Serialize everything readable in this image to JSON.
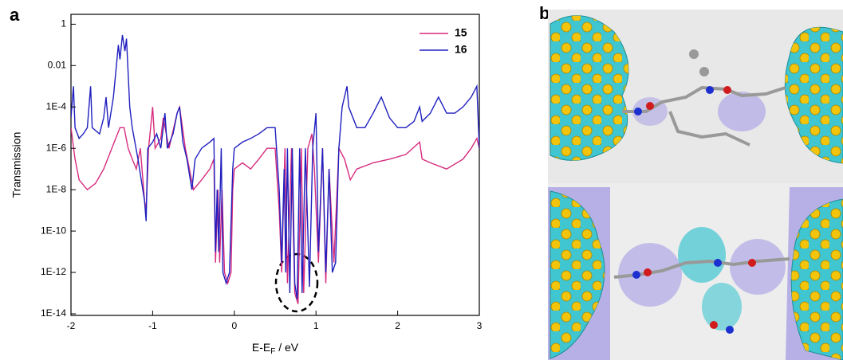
{
  "panel_labels": [
    "a",
    "b"
  ],
  "chart_data": {
    "type": "line",
    "ylabel": "Transmission",
    "xlabel": [
      "E-E",
      "F",
      " / eV"
    ],
    "xlim": [
      -2,
      3
    ],
    "xticks": [
      -2,
      -1,
      0,
      1,
      2,
      3
    ],
    "ylim": [
      1e-14,
      3
    ],
    "log_y": true,
    "yticks": [
      1,
      0.01,
      {
        "value": 0.0001,
        "label": "1E-4"
      },
      {
        "value": 1e-06,
        "label": "1E-6"
      },
      {
        "value": 1e-08,
        "label": "1E-8"
      },
      {
        "value": 1e-10,
        "label": "1E-10"
      },
      {
        "value": 1e-12,
        "label": "1E-12"
      },
      {
        "value": 1e-14,
        "label": "1E-14"
      }
    ],
    "legend": "upper right",
    "series": [
      {
        "name": "15",
        "color": "#d62a7e",
        "x": [
          -2.0,
          -1.95,
          -1.9,
          -1.8,
          -1.7,
          -1.6,
          -1.5,
          -1.4,
          -1.35,
          -1.3,
          -1.25,
          -1.2,
          -1.15,
          -1.1,
          -1.08,
          -1.05,
          -1.0,
          -0.97,
          -0.9,
          -0.87,
          -0.8,
          -0.7,
          -0.67,
          -0.6,
          -0.5,
          -0.4,
          -0.3,
          -0.25,
          -0.23,
          -0.2,
          -0.18,
          -0.15,
          -0.12,
          -0.08,
          -0.04,
          -0.02,
          0.0,
          0.1,
          0.2,
          0.3,
          0.4,
          0.5,
          0.55,
          0.58,
          0.62,
          0.65,
          0.7,
          0.74,
          0.78,
          0.82,
          0.85,
          0.9,
          0.95,
          0.98,
          1.03,
          1.08,
          1.12,
          1.16,
          1.22,
          1.28,
          1.35,
          1.42,
          1.5,
          1.7,
          1.9,
          2.1,
          2.27,
          2.3,
          2.4,
          2.6,
          2.8,
          2.9,
          2.97,
          3.0
        ],
        "values": [
          1e-05,
          3e-07,
          3e-08,
          1e-08,
          2e-08,
          1e-07,
          1e-06,
          1e-05,
          1e-05,
          1e-06,
          3e-07,
          1e-07,
          1e-06,
          3e-09,
          1e-09,
          1e-06,
          0.0001,
          1e-06,
          3e-06,
          3e-05,
          1e-06,
          5e-05,
          0.0001,
          1e-06,
          1e-08,
          3e-08,
          1e-07,
          3e-07,
          3e-12,
          1e-08,
          3e-12,
          1e-08,
          1e-12,
          3e-13,
          1e-12,
          1e-08,
          1e-07,
          2e-07,
          1e-07,
          3e-07,
          1e-06,
          1e-06,
          1e-09,
          1e-12,
          1e-06,
          3e-13,
          1e-06,
          1e-13,
          3e-14,
          1e-06,
          1e-13,
          1e-06,
          5e-06,
          1e-07,
          3e-12,
          1e-06,
          3e-13,
          1e-07,
          3e-12,
          1e-06,
          3e-07,
          3e-08,
          1e-07,
          2e-07,
          3e-07,
          5e-07,
          2e-06,
          3e-07,
          2e-07,
          1e-07,
          3e-07,
          1e-06,
          3e-06,
          1e-06
        ]
      },
      {
        "name": "16",
        "color": "#1f1fbf",
        "x": [
          -2.0,
          -1.97,
          -1.95,
          -1.9,
          -1.85,
          -1.8,
          -1.76,
          -1.74,
          -1.65,
          -1.6,
          -1.57,
          -1.54,
          -1.48,
          -1.42,
          -1.4,
          -1.37,
          -1.34,
          -1.32,
          -1.28,
          -1.25,
          -1.18,
          -1.1,
          -1.08,
          -1.06,
          -1.0,
          -0.95,
          -0.9,
          -0.85,
          -0.82,
          -0.75,
          -0.7,
          -0.67,
          -0.63,
          -0.58,
          -0.52,
          -0.48,
          -0.4,
          -0.3,
          -0.25,
          -0.23,
          -0.21,
          -0.19,
          -0.16,
          -0.14,
          -0.1,
          -0.06,
          -0.02,
          0.0,
          0.1,
          0.2,
          0.3,
          0.4,
          0.5,
          0.55,
          0.58,
          0.61,
          0.63,
          0.65,
          0.68,
          0.71,
          0.74,
          0.77,
          0.8,
          0.83,
          0.87,
          0.92,
          0.96,
          1.0,
          1.03,
          1.08,
          1.12,
          1.16,
          1.2,
          1.24,
          1.28,
          1.32,
          1.38,
          1.4,
          1.5,
          1.6,
          1.7,
          1.8,
          1.9,
          2.0,
          2.1,
          2.2,
          2.27,
          2.3,
          2.4,
          2.5,
          2.6,
          2.7,
          2.8,
          2.9,
          2.97,
          3.0
        ],
        "values": [
          3e-05,
          0.001,
          1e-05,
          3e-06,
          5e-06,
          1e-05,
          0.001,
          1e-05,
          5e-06,
          3e-05,
          0.0003,
          1e-05,
          0.0003,
          0.1,
          0.02,
          0.3,
          0.05,
          0.2,
          0.0001,
          1e-05,
          3e-07,
          3e-09,
          3e-10,
          1e-06,
          2e-06,
          5e-06,
          1e-06,
          5e-05,
          1e-06,
          5e-06,
          5e-05,
          0.0001,
          2e-06,
          3e-07,
          1e-08,
          3e-07,
          1e-06,
          2e-06,
          3e-06,
          1e-11,
          1e-08,
          1e-11,
          1e-06,
          1e-12,
          3e-13,
          1e-12,
          1e-07,
          1e-06,
          2e-06,
          3e-06,
          5e-06,
          1e-05,
          1e-05,
          1e-08,
          3e-12,
          1e-07,
          1e-12,
          1e-06,
          1e-13,
          1e-06,
          3e-13,
          5e-14,
          1e-06,
          1e-13,
          1e-06,
          2e-13,
          1e-06,
          5e-05,
          1e-11,
          1e-06,
          1e-12,
          1e-07,
          1e-12,
          3e-12,
          1e-06,
          0.0001,
          0.001,
          0.0001,
          1e-05,
          1e-05,
          5e-05,
          0.0003,
          3e-05,
          1e-05,
          1e-05,
          2e-05,
          0.0001,
          2e-05,
          5e-05,
          0.0003,
          5e-05,
          5e-05,
          0.0001,
          0.0003,
          0.001,
          1e-06
        ]
      }
    ]
  }
}
